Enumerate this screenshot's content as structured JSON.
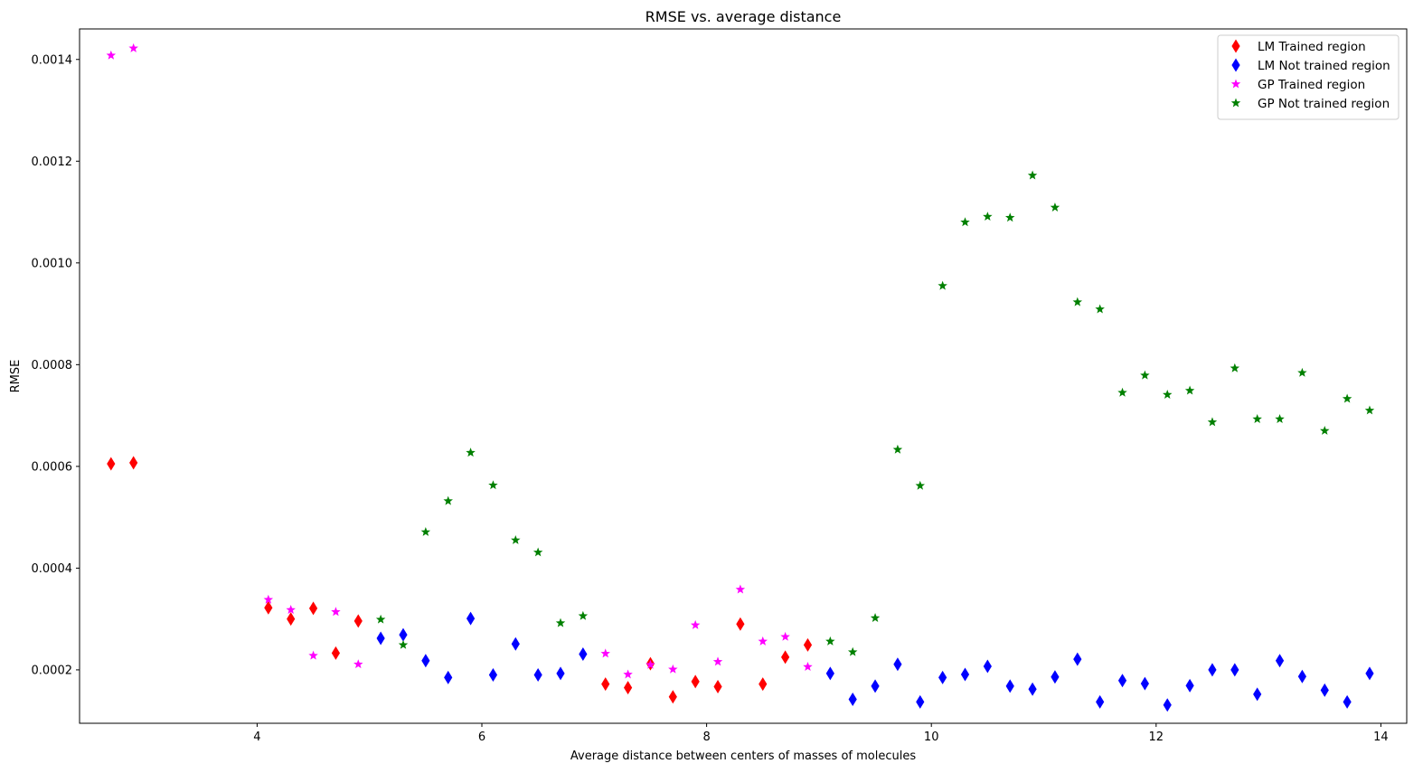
{
  "chart_data": {
    "type": "scatter",
    "title": "RMSE vs. average distance",
    "xlabel": "Average distance between centers of masses of molecules",
    "ylabel": "RMSE",
    "xlim": [
      2.42,
      14.23
    ],
    "ylim": [
      9.5e-05,
      0.00146
    ],
    "xticks": [
      4,
      6,
      8,
      10,
      12,
      14
    ],
    "xtick_labels": [
      "4",
      "6",
      "8",
      "10",
      "12",
      "14"
    ],
    "yticks": [
      0.0002,
      0.0004,
      0.0006,
      0.0008,
      0.001,
      0.0012,
      0.0014
    ],
    "ytick_labels": [
      "0.0002",
      "0.0004",
      "0.0006",
      "0.0008",
      "0.0010",
      "0.0012",
      "0.0014"
    ],
    "grid": false,
    "legend_position": "top-right",
    "series": [
      {
        "name": "LM Trained region",
        "color": "#ff0000",
        "marker": "thin_diamond",
        "x": [
          2.7,
          2.9,
          4.1,
          4.3,
          4.5,
          4.7,
          4.9,
          7.1,
          7.3,
          7.5,
          7.7,
          7.9,
          8.1,
          8.3,
          8.5,
          8.7,
          8.9
        ],
        "y": [
          0.000605,
          0.000607,
          0.000322,
          0.0003,
          0.000321,
          0.000233,
          0.000296,
          0.000172,
          0.000165,
          0.000212,
          0.000147,
          0.000177,
          0.000167,
          0.00029,
          0.000172,
          0.000225,
          0.000249
        ]
      },
      {
        "name": "LM Not trained region",
        "color": "#0000ff",
        "marker": "thin_diamond",
        "x": [
          5.1,
          5.3,
          5.5,
          5.7,
          5.9,
          6.1,
          6.3,
          6.5,
          6.7,
          6.9,
          9.1,
          9.3,
          9.5,
          9.7,
          9.9,
          10.1,
          10.3,
          10.5,
          10.7,
          10.9,
          11.1,
          11.3,
          11.5,
          11.7,
          11.9,
          12.1,
          12.3,
          12.5,
          12.7,
          12.9,
          13.1,
          13.3,
          13.5,
          13.7,
          13.9
        ],
        "y": [
          0.000262,
          0.000269,
          0.000218,
          0.000185,
          0.000301,
          0.00019,
          0.000251,
          0.00019,
          0.000193,
          0.000231,
          0.000193,
          0.000142,
          0.000168,
          0.000211,
          0.000137,
          0.000185,
          0.000191,
          0.000207,
          0.000168,
          0.000162,
          0.000186,
          0.000221,
          0.000137,
          0.000179,
          0.000173,
          0.000131,
          0.000169,
          0.0002,
          0.0002,
          0.000152,
          0.000218,
          0.000187,
          0.00016,
          0.000137,
          0.000193
        ]
      },
      {
        "name": "GP Trained region",
        "color": "#ff00ff",
        "marker": "star",
        "x": [
          2.7,
          2.9,
          4.1,
          4.3,
          4.5,
          4.7,
          4.9,
          7.1,
          7.3,
          7.5,
          7.7,
          7.9,
          8.1,
          8.3,
          8.5,
          8.7,
          8.9
        ],
        "y": [
          0.001408,
          0.001422,
          0.000338,
          0.000318,
          0.000228,
          0.000314,
          0.000211,
          0.000232,
          0.000191,
          0.00021,
          0.000201,
          0.000288,
          0.000216,
          0.000358,
          0.000256,
          0.000265,
          0.000206
        ]
      },
      {
        "name": "GP Not trained region",
        "color": "#008000",
        "marker": "star",
        "x": [
          5.1,
          5.3,
          5.5,
          5.7,
          5.9,
          6.1,
          6.3,
          6.5,
          6.7,
          6.9,
          9.1,
          9.3,
          9.5,
          9.7,
          9.9,
          10.1,
          10.3,
          10.5,
          10.7,
          10.9,
          11.1,
          11.3,
          11.5,
          11.7,
          11.9,
          12.1,
          12.3,
          12.5,
          12.7,
          12.9,
          13.1,
          13.3,
          13.5,
          13.7,
          13.9
        ],
        "y": [
          0.000299,
          0.000249,
          0.000471,
          0.000532,
          0.000627,
          0.000563,
          0.000455,
          0.000431,
          0.000292,
          0.000306,
          0.000256,
          0.000235,
          0.000302,
          0.000633,
          0.000562,
          0.000955,
          0.00108,
          0.001091,
          0.001089,
          0.001172,
          0.001109,
          0.000923,
          0.000909,
          0.000745,
          0.000779,
          0.000741,
          0.000749,
          0.000687,
          0.000793,
          0.000693,
          0.000693,
          0.000784,
          0.00067,
          0.000733,
          0.00071
        ]
      }
    ]
  }
}
